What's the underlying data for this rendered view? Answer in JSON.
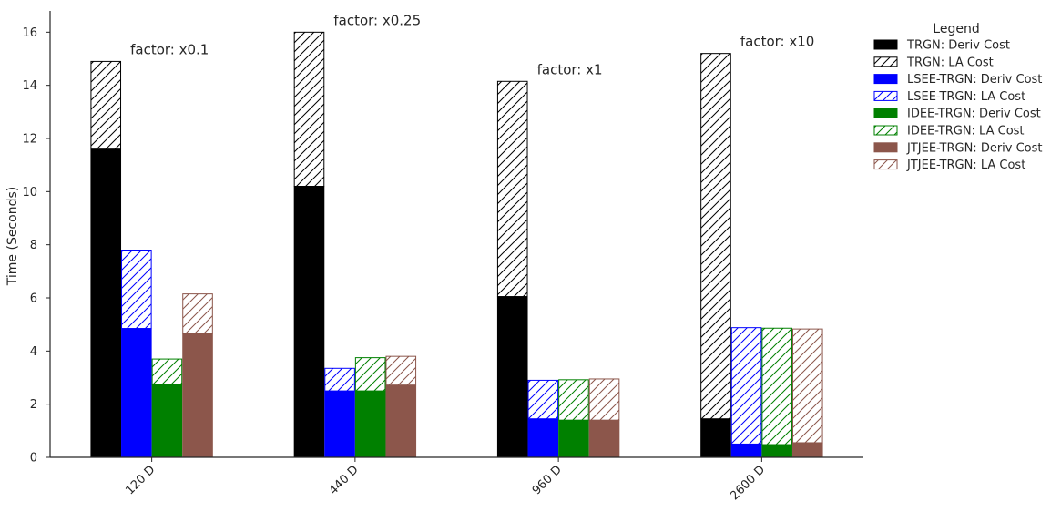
{
  "chart_data": {
    "type": "bar",
    "stacked": true,
    "categories": [
      "120 D",
      "440 D",
      "960 D",
      "2600 D"
    ],
    "annotations": [
      "factor: x0.1",
      "factor: x0.25",
      "factor: x1",
      "factor: x10"
    ],
    "ylabel": "Time (Seconds)",
    "xlabel": "",
    "ylim": [
      0,
      16.8
    ],
    "yticks": [
      0,
      2,
      4,
      6,
      8,
      10,
      12,
      14,
      16
    ],
    "grid": false,
    "legend": {
      "title": "Legend",
      "placement": "top-right, outside plot"
    },
    "methods": [
      {
        "name": "TRGN",
        "color": "#000000",
        "deriv_label": "TRGN: Deriv Cost",
        "la_label": "TRGN: LA Cost",
        "deriv_cost": [
          11.6,
          10.2,
          6.05,
          1.45
        ],
        "la_cost": [
          3.3,
          5.8,
          8.1,
          13.75
        ]
      },
      {
        "name": "LSEE-TRGN",
        "color": "#0000ff",
        "deriv_label": "LSEE-TRGN: Deriv Cost",
        "la_label": "LSEE-TRGN: LA Cost",
        "deriv_cost": [
          4.85,
          2.5,
          1.45,
          0.5
        ],
        "la_cost": [
          2.95,
          0.85,
          1.45,
          4.38
        ]
      },
      {
        "name": "IDEE-TRGN",
        "color": "#008000",
        "deriv_label": "IDEE-TRGN: Deriv Cost",
        "la_label": "IDEE-TRGN: LA Cost",
        "deriv_cost": [
          2.75,
          2.5,
          1.4,
          0.48
        ],
        "la_cost": [
          0.95,
          1.25,
          1.52,
          4.38
        ]
      },
      {
        "name": "JTJEE-TRGN",
        "color": "#8c564b",
        "deriv_label": "JTJEE-TRGN: Deriv Cost",
        "la_label": "JTJEE-TRGN: LA Cost",
        "deriv_cost": [
          4.65,
          2.72,
          1.4,
          0.55
        ],
        "la_cost": [
          1.5,
          1.08,
          1.55,
          4.28
        ]
      }
    ]
  }
}
